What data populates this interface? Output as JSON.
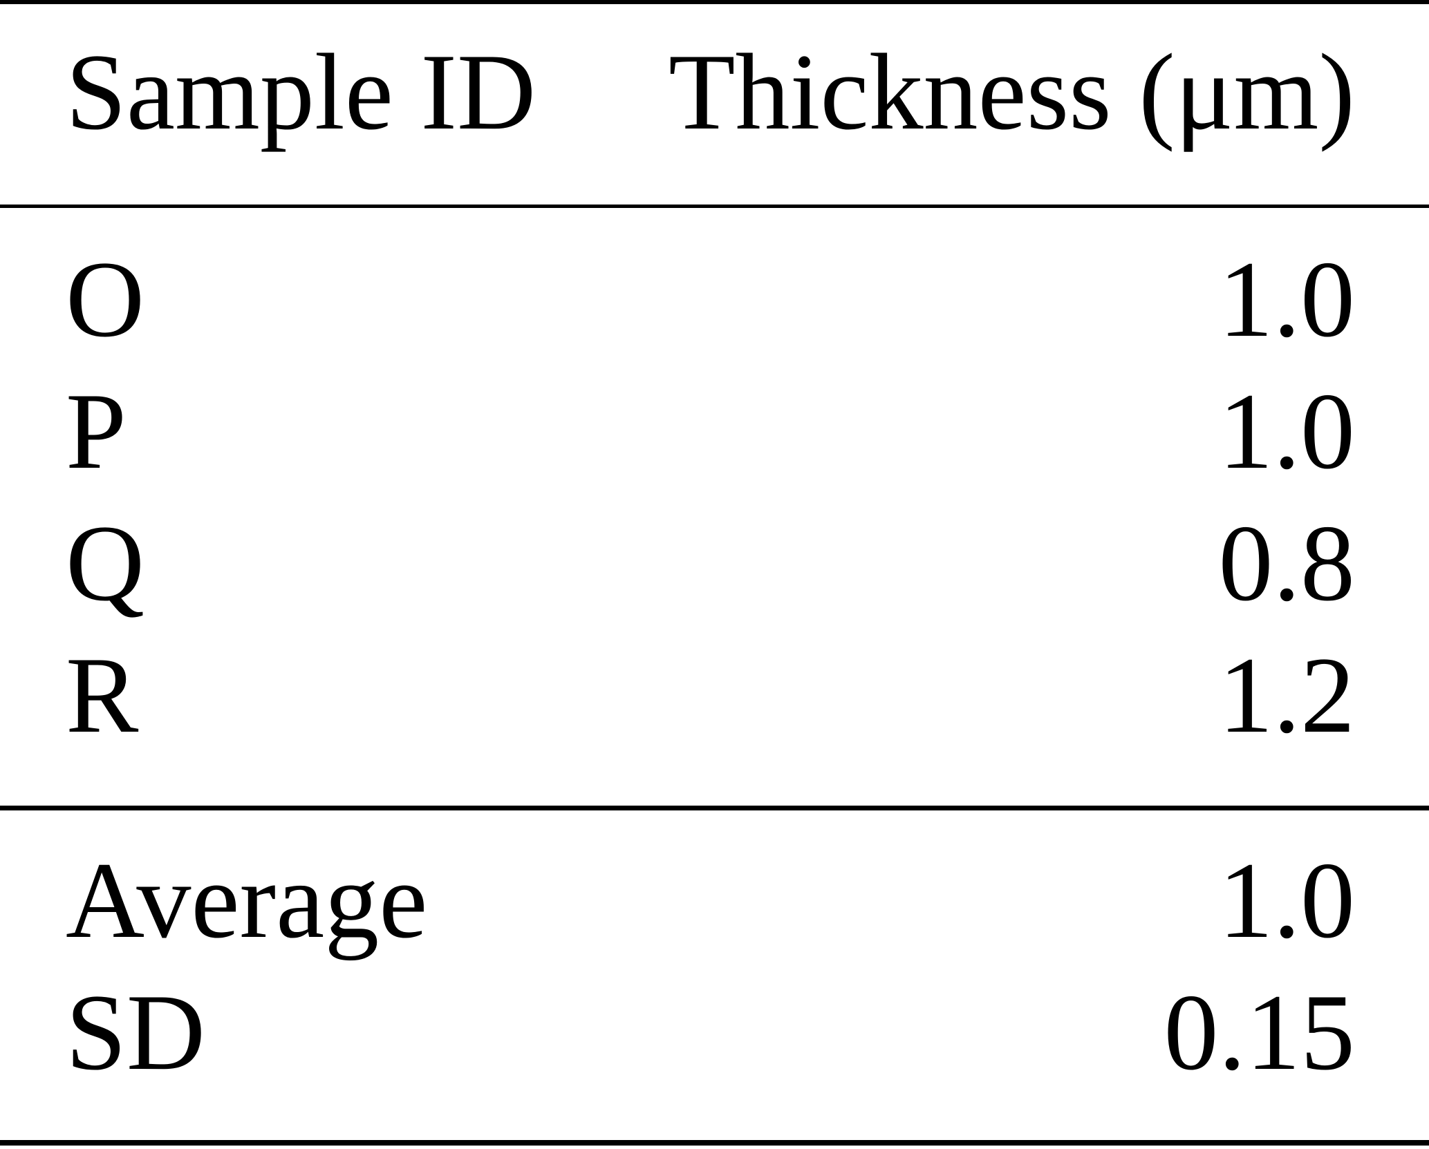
{
  "page": {
    "background_color": "#ffffff",
    "text_color": "#000000",
    "rule_color": "#000000"
  },
  "table": {
    "header": {
      "sample_id_label": "Sample ID",
      "thickness_label": "Thickness (μm)"
    },
    "rows": [
      {
        "id": "O",
        "thickness": "1.0"
      },
      {
        "id": "P",
        "thickness": "1.0"
      },
      {
        "id": "Q",
        "thickness": "0.8"
      },
      {
        "id": "R",
        "thickness": "1.2"
      }
    ],
    "summary": [
      {
        "label": "Average",
        "value": "1.0"
      },
      {
        "label": "SD",
        "value": "0.15"
      }
    ]
  },
  "chart_data": {
    "type": "table",
    "columns": [
      "Sample ID",
      "Thickness (μm)"
    ],
    "rows": [
      [
        "O",
        "1.0"
      ],
      [
        "P",
        "1.0"
      ],
      [
        "Q",
        "0.8"
      ],
      [
        "R",
        "1.2"
      ]
    ],
    "summary_rows": [
      [
        "Average",
        "1.0"
      ],
      [
        "SD",
        "0.15"
      ]
    ]
  }
}
